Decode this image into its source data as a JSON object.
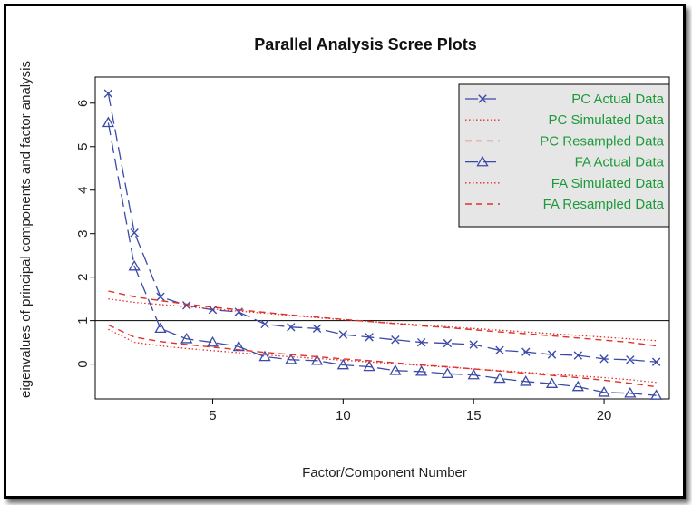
{
  "chart_data": {
    "type": "line",
    "title": "Parallel Analysis Scree Plots",
    "xlabel": "Factor/Component Number",
    "ylabel": "eigenvalues of principal components and factor analysis",
    "xlim": [
      0.5,
      22.5
    ],
    "ylim": [
      -0.8,
      6.6
    ],
    "xticks": [
      5,
      10,
      15,
      20
    ],
    "yticks": [
      0,
      1,
      2,
      3,
      4,
      5,
      6
    ],
    "reference_line": 1,
    "grid": false,
    "legend_position": "top-right",
    "colors": {
      "actual": "#3b4aa8",
      "simulated": "#e0302a",
      "legend_text": "#1f9a3a",
      "legend_bg": "#e6e6e6"
    },
    "x": [
      1,
      2,
      3,
      4,
      5,
      6,
      7,
      8,
      9,
      10,
      11,
      12,
      13,
      14,
      15,
      16,
      17,
      18,
      19,
      20,
      21,
      22
    ],
    "series": [
      {
        "name": "PC  Actual Data",
        "kind": "actual",
        "marker": "x",
        "values": [
          6.22,
          3.02,
          1.55,
          1.35,
          1.25,
          1.2,
          0.92,
          0.85,
          0.82,
          0.68,
          0.62,
          0.56,
          0.5,
          0.48,
          0.45,
          0.32,
          0.28,
          0.22,
          0.2,
          0.12,
          0.1,
          0.05
        ]
      },
      {
        "name": "PC  Simulated Data",
        "kind": "dotted",
        "values": [
          1.5,
          1.42,
          1.37,
          1.32,
          1.27,
          1.22,
          1.17,
          1.12,
          1.07,
          1.02,
          0.98,
          0.94,
          0.9,
          0.86,
          0.82,
          0.78,
          0.74,
          0.7,
          0.66,
          0.62,
          0.58,
          0.54
        ]
      },
      {
        "name": "PC  Resampled Data",
        "kind": "dashed",
        "values": [
          1.68,
          1.55,
          1.46,
          1.38,
          1.31,
          1.25,
          1.19,
          1.13,
          1.08,
          1.03,
          0.98,
          0.93,
          0.88,
          0.84,
          0.79,
          0.74,
          0.7,
          0.65,
          0.6,
          0.55,
          0.5,
          0.42
        ]
      },
      {
        "name": "FA  Actual Data",
        "kind": "actual",
        "marker": "triangle",
        "values": [
          5.55,
          2.25,
          0.82,
          0.58,
          0.5,
          0.4,
          0.17,
          0.1,
          0.08,
          -0.02,
          -0.06,
          -0.15,
          -0.17,
          -0.22,
          -0.25,
          -0.33,
          -0.4,
          -0.45,
          -0.52,
          -0.65,
          -0.67,
          -0.72
        ]
      },
      {
        "name": "FA  Simulated Data",
        "kind": "dotted",
        "values": [
          0.8,
          0.5,
          0.42,
          0.36,
          0.31,
          0.26,
          0.21,
          0.17,
          0.13,
          0.09,
          0.05,
          0.01,
          -0.03,
          -0.07,
          -0.11,
          -0.15,
          -0.19,
          -0.23,
          -0.27,
          -0.31,
          -0.36,
          -0.42
        ]
      },
      {
        "name": "FA  Resampled Data",
        "kind": "dashed",
        "values": [
          0.9,
          0.62,
          0.52,
          0.45,
          0.39,
          0.33,
          0.27,
          0.22,
          0.17,
          0.12,
          0.08,
          0.03,
          -0.02,
          -0.06,
          -0.11,
          -0.16,
          -0.21,
          -0.26,
          -0.31,
          -0.37,
          -0.44,
          -0.52
        ]
      }
    ]
  }
}
